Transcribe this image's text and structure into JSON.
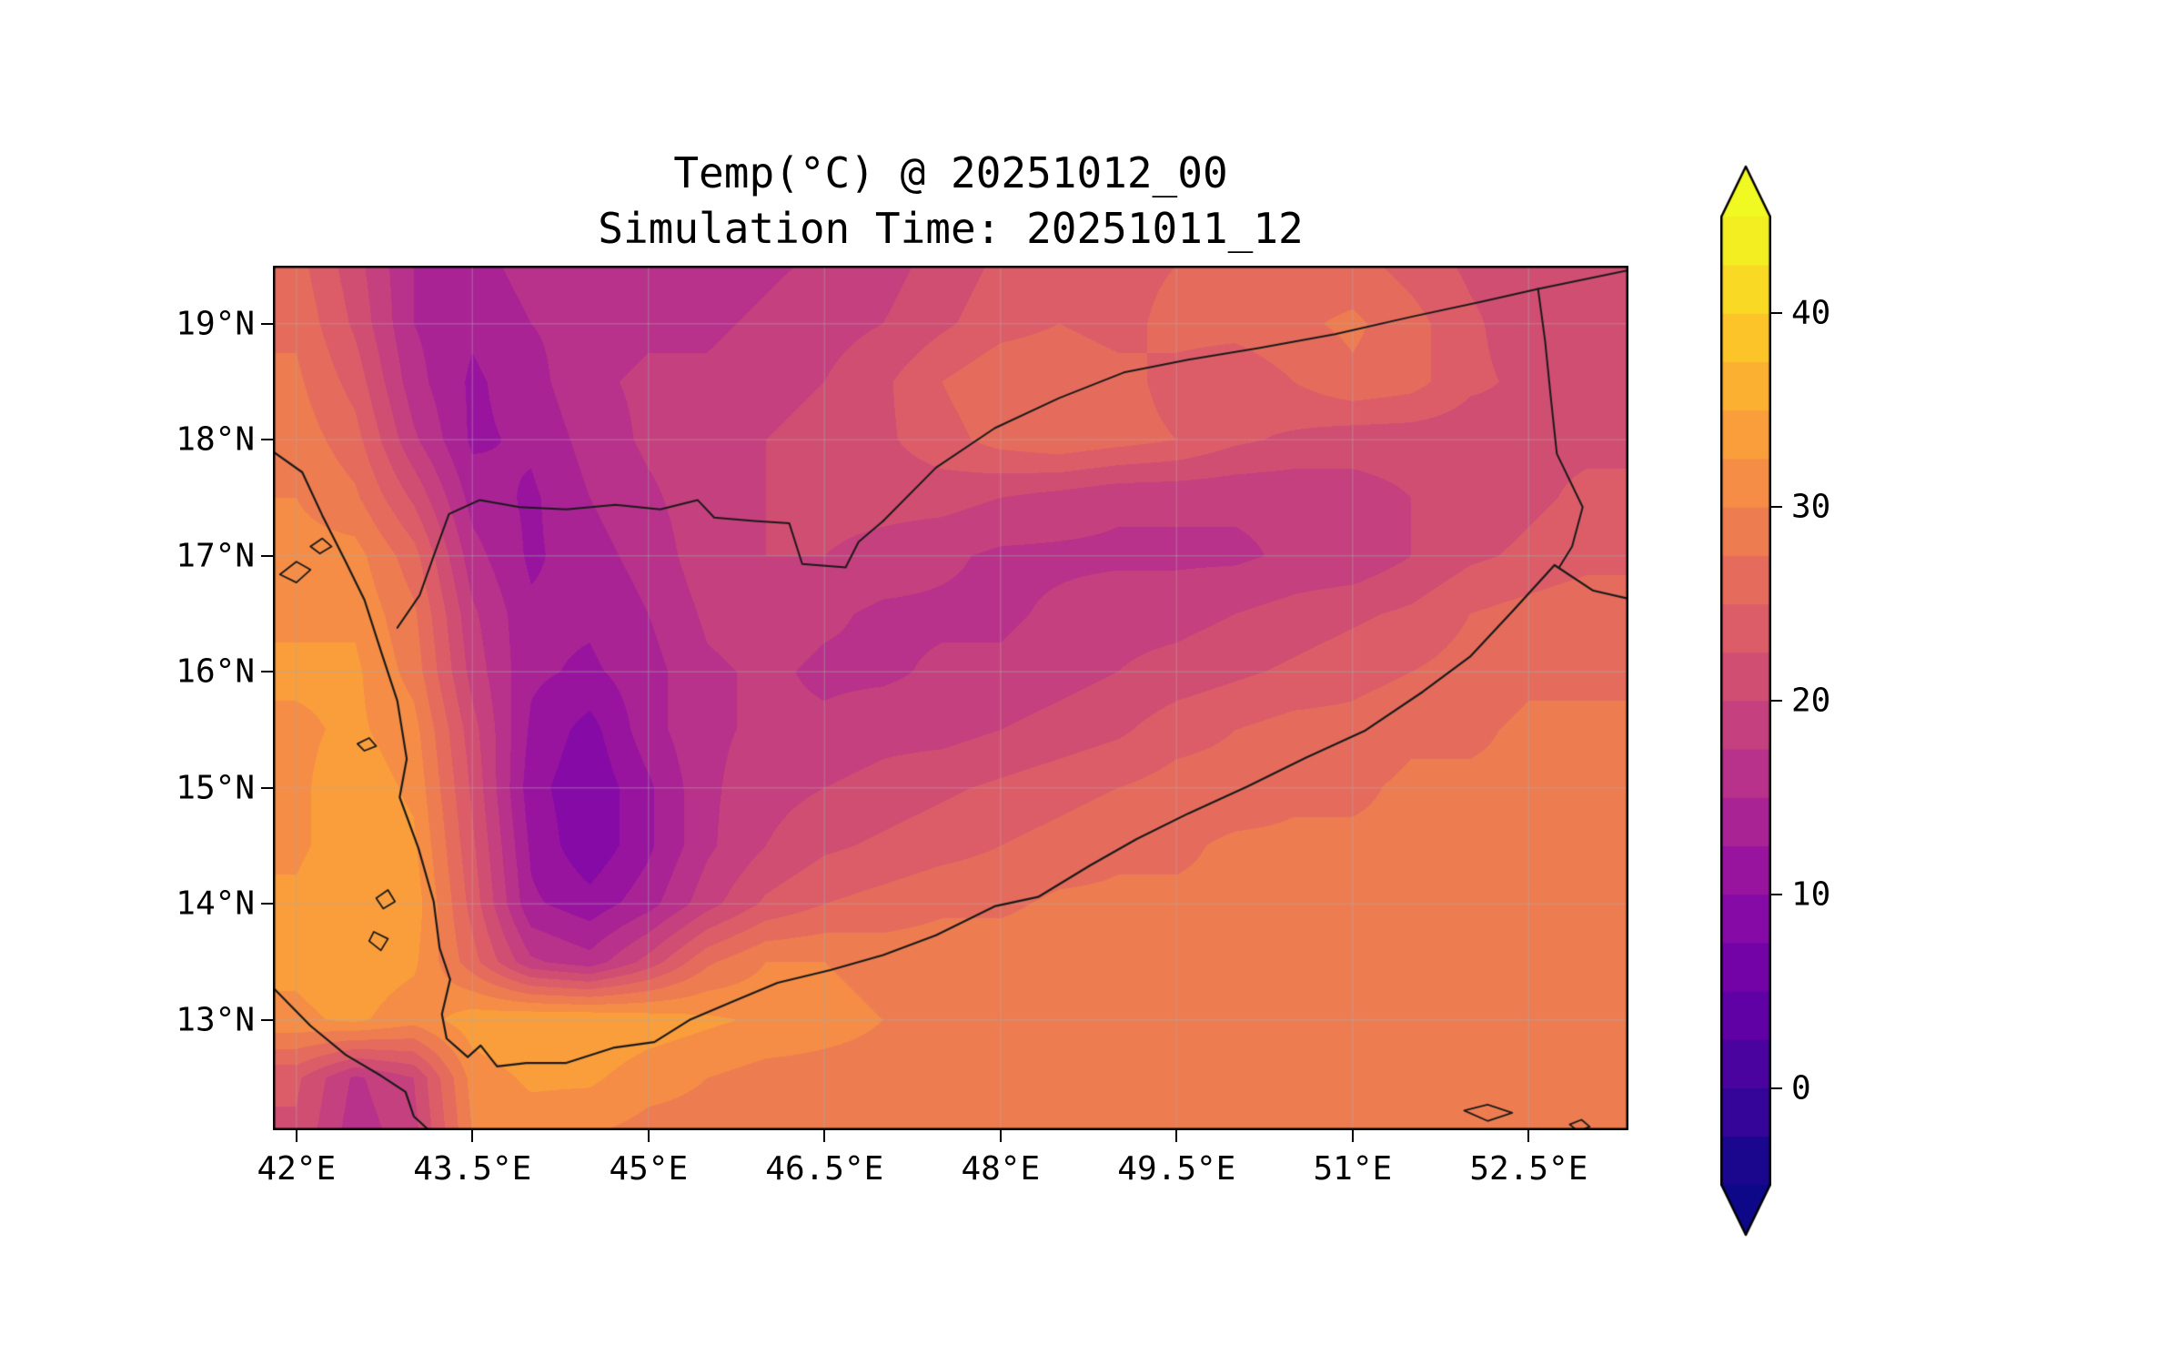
{
  "figure": {
    "background_color": "#ffffff",
    "text_color": "#000000"
  },
  "chart_data": {
    "type": "heatmap",
    "title": "Temp(°C) @ 20251012_00",
    "subtitle": "Simulation Time: 20251011_12",
    "variable": "Temperature (°C)",
    "projection": "lat-lon map over Yemen / southern Arabian Peninsula",
    "x_axis": {
      "tick_values": [
        42,
        43.5,
        45,
        46.5,
        48,
        49.5,
        51,
        52.5
      ],
      "tick_labels": [
        "42°E",
        "43.5°E",
        "45°E",
        "46.5°E",
        "48°E",
        "49.5°E",
        "51°E",
        "52.5°E"
      ],
      "range": [
        41.8,
        53.35
      ]
    },
    "y_axis": {
      "tick_values": [
        13,
        14,
        15,
        16,
        17,
        18,
        19
      ],
      "tick_labels": [
        "13°N",
        "14°N",
        "15°N",
        "16°N",
        "17°N",
        "18°N",
        "19°N"
      ],
      "range": [
        12.05,
        19.5
      ]
    },
    "colorbar": {
      "colormap": "plasma",
      "levels_min": -5,
      "levels_max": 45,
      "level_step": 2.5,
      "extend": "both",
      "tick_values": [
        0,
        10,
        20,
        30,
        40
      ],
      "tick_labels": [
        "0",
        "10",
        "20",
        "30",
        "40"
      ],
      "plasma_stops": [
        [
          0.0,
          "#0d0887"
        ],
        [
          0.1,
          "#41049d"
        ],
        [
          0.2,
          "#6a00a8"
        ],
        [
          0.3,
          "#8f0da4"
        ],
        [
          0.4,
          "#b12a90"
        ],
        [
          0.5,
          "#cc4778"
        ],
        [
          0.6,
          "#e16462"
        ],
        [
          0.7,
          "#f2844b"
        ],
        [
          0.8,
          "#fca636"
        ],
        [
          0.9,
          "#fcce25"
        ],
        [
          1.0,
          "#f0f921"
        ]
      ]
    },
    "grid": {
      "description": "Temperature (°C) on a coarse lon/lat grid; rows ordered south to north",
      "lon_start": 42.0,
      "lon_step": 0.5,
      "lon_count": 23,
      "lat_start": 12.0,
      "lat_step": 0.5,
      "lat_count": 16,
      "values_c": [
        [
          22,
          16,
          19,
          30,
          31,
          30,
          29,
          29,
          29,
          29,
          29,
          29,
          29,
          29,
          29,
          29,
          29,
          29,
          29,
          29,
          29,
          29,
          29
        ],
        [
          23,
          17,
          20,
          31,
          33,
          33,
          31,
          30,
          29,
          29,
          29,
          29,
          29,
          29,
          29,
          29,
          29,
          29,
          29,
          29,
          29,
          29,
          29
        ],
        [
          32,
          33,
          31,
          34,
          35,
          35,
          34,
          33,
          32,
          31,
          30,
          29,
          29,
          29,
          29,
          29,
          29,
          29,
          29,
          29,
          29,
          29,
          29
        ],
        [
          33,
          34,
          33,
          26,
          18,
          16,
          21,
          27,
          30,
          30,
          29,
          29,
          29,
          29,
          29,
          29,
          29,
          29,
          29,
          29,
          29,
          29,
          29
        ],
        [
          33,
          35,
          34,
          24,
          13,
          11,
          14,
          19,
          23,
          25,
          26,
          27,
          27,
          28,
          28,
          28,
          28,
          28,
          28,
          28,
          28,
          28,
          28
        ],
        [
          32,
          34,
          33,
          23,
          12,
          8,
          12,
          17,
          20,
          22,
          23,
          24,
          25,
          26,
          27,
          27,
          28,
          28,
          28,
          28,
          28,
          28,
          28
        ],
        [
          32,
          34,
          32,
          22,
          11,
          8,
          12,
          17,
          19,
          20,
          21,
          22,
          23,
          24,
          25,
          26,
          26,
          27,
          27,
          28,
          28,
          28,
          28
        ],
        [
          32,
          33,
          31,
          21,
          12,
          9,
          14,
          17,
          18,
          18,
          19,
          19,
          20,
          21,
          22,
          24,
          25,
          26,
          26,
          27,
          27,
          28,
          28
        ],
        [
          33,
          33,
          29,
          19,
          13,
          12,
          14,
          17,
          18,
          17,
          17,
          18,
          18,
          19,
          20,
          21,
          22,
          23,
          24,
          25,
          26,
          27,
          27
        ],
        [
          32,
          32,
          28,
          18,
          13,
          13,
          15,
          18,
          19,
          18,
          17,
          17,
          17,
          18,
          19,
          19,
          20,
          21,
          22,
          23,
          25,
          26,
          27
        ],
        [
          31,
          31,
          26,
          16,
          12,
          14,
          16,
          19,
          20,
          20,
          19,
          18,
          17,
          17,
          17,
          17,
          17,
          18,
          18,
          20,
          22,
          23,
          24
        ],
        [
          30,
          28,
          22,
          14,
          12,
          15,
          17,
          19,
          20,
          21,
          21,
          21,
          20,
          19,
          18,
          18,
          18,
          18,
          19,
          20,
          21,
          22,
          23
        ],
        [
          29,
          26,
          18,
          12,
          13,
          16,
          18,
          19,
          20,
          21,
          22,
          24,
          26,
          27,
          26,
          25,
          23,
          22,
          21,
          21,
          21,
          22,
          22
        ],
        [
          28,
          24,
          16,
          12,
          14,
          17,
          18,
          18,
          19,
          20,
          22,
          25,
          27,
          27,
          26,
          24,
          23,
          25,
          27,
          26,
          23,
          22,
          21
        ],
        [
          27,
          22,
          15,
          13,
          15,
          16,
          17,
          17,
          18,
          19,
          20,
          22,
          24,
          25,
          24,
          26,
          26,
          27,
          28,
          26,
          23,
          21,
          21
        ],
        [
          26,
          21,
          15,
          14,
          16,
          16,
          16,
          16,
          17,
          18,
          19,
          21,
          23,
          24,
          24,
          25,
          25,
          26,
          26,
          24,
          22,
          21,
          20
        ]
      ]
    },
    "overlays": {
      "line_color": "#1a1a1a",
      "gridline_color": "rgba(170,170,170,0.38)",
      "coastlines": [
        [
          [
            41.8,
            17.9
          ],
          [
            42.05,
            17.72
          ],
          [
            42.22,
            17.35
          ],
          [
            42.42,
            16.95
          ],
          [
            42.58,
            16.62
          ],
          [
            42.72,
            16.18
          ],
          [
            42.86,
            15.75
          ],
          [
            42.94,
            15.25
          ],
          [
            42.88,
            14.92
          ],
          [
            43.04,
            14.48
          ],
          [
            43.17,
            14.02
          ],
          [
            43.22,
            13.62
          ],
          [
            43.31,
            13.35
          ],
          [
            43.24,
            13.05
          ],
          [
            43.28,
            12.84
          ],
          [
            43.46,
            12.68
          ],
          [
            43.57,
            12.78
          ],
          [
            43.71,
            12.6
          ],
          [
            43.96,
            12.63
          ],
          [
            44.3,
            12.63
          ],
          [
            44.7,
            12.76
          ],
          [
            45.05,
            12.81
          ],
          [
            45.35,
            13.0
          ],
          [
            45.72,
            13.16
          ],
          [
            46.1,
            13.32
          ],
          [
            46.55,
            13.43
          ],
          [
            47.0,
            13.56
          ],
          [
            47.45,
            13.73
          ],
          [
            47.95,
            13.98
          ],
          [
            48.32,
            14.06
          ],
          [
            48.76,
            14.33
          ],
          [
            49.16,
            14.56
          ],
          [
            49.6,
            14.78
          ],
          [
            50.1,
            15.01
          ],
          [
            50.6,
            15.26
          ],
          [
            51.1,
            15.49
          ],
          [
            51.6,
            15.83
          ],
          [
            52.0,
            16.13
          ],
          [
            52.36,
            16.52
          ],
          [
            52.72,
            16.92
          ],
          [
            53.05,
            16.7
          ],
          [
            53.35,
            16.63
          ]
        ],
        [
          [
            41.8,
            13.28
          ],
          [
            42.12,
            12.95
          ],
          [
            42.42,
            12.7
          ],
          [
            42.72,
            12.52
          ],
          [
            42.93,
            12.38
          ],
          [
            43.0,
            12.17
          ],
          [
            43.13,
            12.05
          ]
        ]
      ],
      "borders": [
        [
          [
            42.86,
            16.38
          ],
          [
            43.05,
            16.66
          ],
          [
            43.17,
            17.0
          ],
          [
            43.3,
            17.36
          ],
          [
            43.56,
            17.48
          ],
          [
            43.9,
            17.42
          ],
          [
            44.3,
            17.4
          ],
          [
            44.72,
            17.44
          ],
          [
            45.1,
            17.4
          ],
          [
            45.42,
            17.48
          ],
          [
            45.56,
            17.33
          ],
          [
            45.9,
            17.3
          ],
          [
            46.2,
            17.28
          ],
          [
            46.31,
            16.93
          ],
          [
            46.68,
            16.9
          ],
          [
            46.79,
            17.12
          ],
          [
            47.0,
            17.3
          ]
        ],
        [
          [
            47.0,
            17.3
          ],
          [
            47.45,
            17.76
          ],
          [
            47.95,
            18.1
          ],
          [
            48.5,
            18.36
          ],
          [
            49.05,
            18.58
          ],
          [
            49.6,
            18.69
          ],
          [
            50.2,
            18.79
          ],
          [
            50.85,
            18.91
          ],
          [
            51.5,
            19.06
          ],
          [
            52.1,
            19.19
          ],
          [
            52.58,
            19.3
          ]
        ],
        [
          [
            52.58,
            19.3
          ],
          [
            53.35,
            19.46
          ]
        ],
        [
          [
            52.58,
            19.3
          ],
          [
            52.64,
            18.85
          ],
          [
            52.69,
            18.35
          ],
          [
            52.74,
            17.88
          ],
          [
            52.96,
            17.42
          ],
          [
            52.87,
            17.08
          ],
          [
            52.76,
            16.9
          ]
        ]
      ],
      "islands": [
        [
          [
            41.86,
            16.84
          ],
          [
            42.0,
            16.95
          ],
          [
            42.12,
            16.88
          ],
          [
            42.0,
            16.77
          ],
          [
            41.86,
            16.84
          ]
        ],
        [
          [
            42.12,
            17.08
          ],
          [
            42.22,
            17.15
          ],
          [
            42.3,
            17.08
          ],
          [
            42.2,
            17.02
          ],
          [
            42.12,
            17.08
          ]
        ],
        [
          [
            42.52,
            15.38
          ],
          [
            42.62,
            15.43
          ],
          [
            42.68,
            15.36
          ],
          [
            42.58,
            15.32
          ],
          [
            42.52,
            15.38
          ]
        ],
        [
          [
            42.68,
            14.05
          ],
          [
            42.78,
            14.12
          ],
          [
            42.84,
            14.02
          ],
          [
            42.74,
            13.96
          ],
          [
            42.68,
            14.05
          ]
        ],
        [
          [
            42.66,
            13.76
          ],
          [
            42.78,
            13.7
          ],
          [
            42.72,
            13.6
          ],
          [
            42.62,
            13.68
          ],
          [
            42.66,
            13.76
          ]
        ],
        [
          [
            51.95,
            12.22
          ],
          [
            52.15,
            12.27
          ],
          [
            52.36,
            12.2
          ],
          [
            52.15,
            12.13
          ],
          [
            51.95,
            12.22
          ]
        ],
        [
          [
            52.85,
            12.1
          ],
          [
            52.95,
            12.14
          ],
          [
            53.02,
            12.08
          ],
          [
            52.92,
            12.04
          ],
          [
            52.85,
            12.1
          ]
        ]
      ]
    }
  }
}
